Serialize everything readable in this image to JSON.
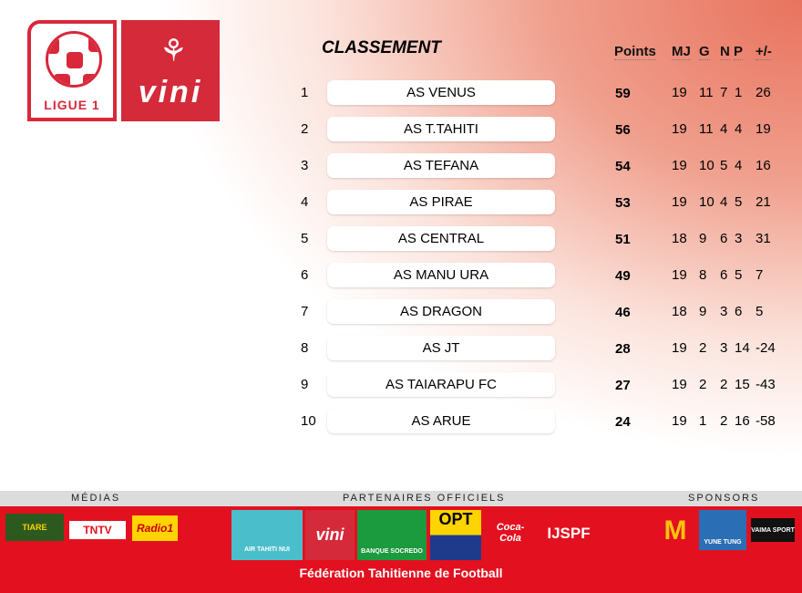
{
  "logos": {
    "ligue": "LIGUE 1",
    "vini": "vini"
  },
  "title": "CLASSEMENT",
  "headers": {
    "points": "Points",
    "mj": "MJ",
    "g": "G",
    "n": "N",
    "p": "P",
    "diff": "+/-"
  },
  "rows": [
    {
      "rank": "1",
      "team": "AS VENUS",
      "pts": "59",
      "mj": "19",
      "g": "11",
      "n": "7",
      "p": "1",
      "diff": "26"
    },
    {
      "rank": "2",
      "team": "AS T.TAHITI",
      "pts": "56",
      "mj": "19",
      "g": "11",
      "n": "4",
      "p": "4",
      "diff": "19"
    },
    {
      "rank": "3",
      "team": "AS TEFANA",
      "pts": "54",
      "mj": "19",
      "g": "10",
      "n": "5",
      "p": "4",
      "diff": "16"
    },
    {
      "rank": "4",
      "team": "AS PIRAE",
      "pts": "53",
      "mj": "19",
      "g": "10",
      "n": "4",
      "p": "5",
      "diff": "21"
    },
    {
      "rank": "5",
      "team": "AS CENTRAL",
      "pts": "51",
      "mj": "18",
      "g": "9",
      "n": "6",
      "p": "3",
      "diff": "31"
    },
    {
      "rank": "6",
      "team": "AS MANU URA",
      "pts": "49",
      "mj": "19",
      "g": "8",
      "n": "6",
      "p": "5",
      "diff": "7"
    },
    {
      "rank": "7",
      "team": "AS DRAGON",
      "pts": "46",
      "mj": "18",
      "g": "9",
      "n": "3",
      "p": "6",
      "diff": "5"
    },
    {
      "rank": "8",
      "team": "AS JT",
      "pts": "28",
      "mj": "19",
      "g": "2",
      "n": "3",
      "p": "14",
      "diff": "-24"
    },
    {
      "rank": "9",
      "team": "AS TAIARAPU FC",
      "pts": "27",
      "mj": "19",
      "g": "2",
      "n": "2",
      "p": "15",
      "diff": "-43"
    },
    {
      "rank": "10",
      "team": "AS ARUE",
      "pts": "24",
      "mj": "19",
      "g": "1",
      "n": "2",
      "p": "16",
      "diff": "-58"
    }
  ],
  "footer": {
    "medias": "MÉDIAS",
    "partners": "PARTENAIRES OFFICIELS",
    "sponsors": "SPONSORS",
    "federation": "Fédération Tahitienne de Football",
    "media_logos": [
      "TIARE",
      "TNTV",
      "Radio1"
    ],
    "partner_logos": [
      "AIR TAHITI NUI",
      "vini",
      "BANQUE SOCREDO",
      "OPT",
      "Coca-Cola",
      "IJSPF"
    ],
    "sponsor_logos": [
      "McDonald's",
      "YUNE TUNG",
      "VAIMA SPORT"
    ]
  }
}
